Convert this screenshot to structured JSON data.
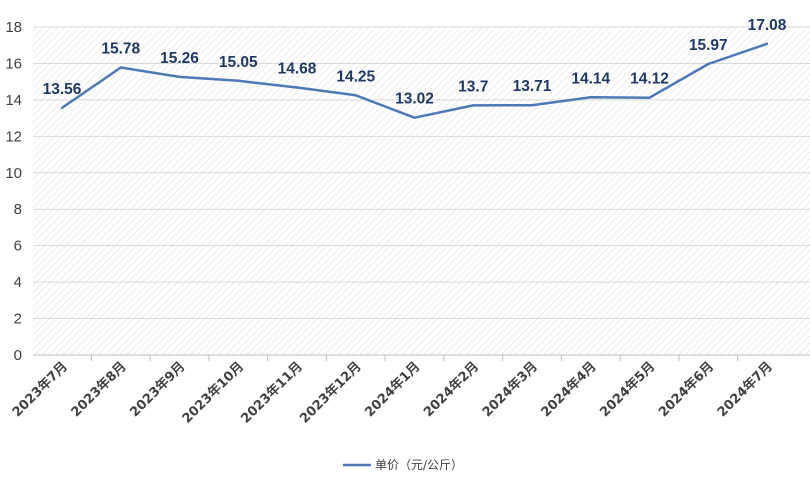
{
  "chart_data": {
    "type": "line",
    "categories": [
      "2023年7月",
      "2023年8月",
      "2023年9月",
      "2023年10月",
      "2023年11月",
      "2023年12月",
      "2024年1月",
      "2024年2月",
      "2024年3月",
      "2024年4月",
      "2024年5月",
      "2024年6月",
      "2024年7月"
    ],
    "series": [
      {
        "name": "单价（元/公斤）",
        "values": [
          13.56,
          15.78,
          15.26,
          15.05,
          14.68,
          14.25,
          13.02,
          13.7,
          13.71,
          14.14,
          14.12,
          15.97,
          17.08
        ],
        "labels": [
          "13.56",
          "15.78",
          "15.26",
          "15.05",
          "14.68",
          "14.25",
          "13.02",
          "13.7",
          "13.71",
          "14.14",
          "14.12",
          "15.97",
          "17.08"
        ],
        "color": "#4e79b5"
      }
    ],
    "y_ticks": [
      "0",
      "2",
      "4",
      "6",
      "8",
      "10",
      "12",
      "14",
      "16",
      "18"
    ],
    "ylim": [
      0,
      18
    ],
    "grid": true,
    "legend": "bottom",
    "colors": {
      "line": "#4e79b5",
      "data_label": "#1f3864",
      "hatch": "#d4d4d4"
    }
  }
}
